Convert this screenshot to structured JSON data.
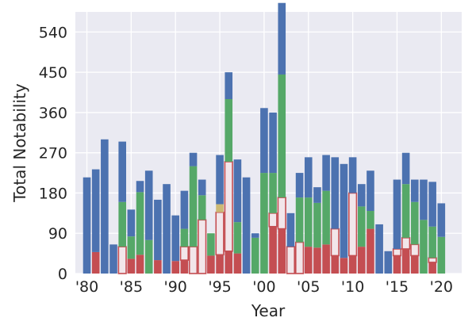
{
  "chart_data": {
    "type": "bar",
    "stacked": true,
    "title": "",
    "xlabel": "Year",
    "ylabel": "Total Notability",
    "ylim": [
      0,
      585
    ],
    "xlim": [
      1978.7,
      2022.3
    ],
    "grid": true,
    "legend": "none",
    "yticks": [
      0,
      90,
      180,
      270,
      360,
      450,
      540
    ],
    "ytick_labels": [
      "0",
      "90",
      "180",
      "270",
      "360",
      "450",
      "540"
    ],
    "xticks": [
      1980,
      1985,
      1990,
      1995,
      2000,
      2005,
      2010,
      2015,
      2020
    ],
    "xtick_labels": [
      "'80",
      "'85",
      "'90",
      "'95",
      "'00",
      "'05",
      "'10",
      "'15",
      "'20"
    ],
    "x": [
      1980,
      1981,
      1982,
      1983,
      1984,
      1985,
      1986,
      1987,
      1988,
      1989,
      1990,
      1991,
      1992,
      1993,
      1994,
      1995,
      1996,
      1997,
      1998,
      1999,
      2000,
      2001,
      2002,
      2003,
      2004,
      2005,
      2006,
      2007,
      2008,
      2009,
      2010,
      2011,
      2012,
      2013,
      2014,
      2015,
      2016,
      2017,
      2018,
      2019,
      2020
    ],
    "series": [
      {
        "color": "#c44e52",
        "values": [
          0,
          48,
          0,
          0,
          0,
          33,
          42,
          0,
          30,
          0,
          28,
          30,
          0,
          0,
          40,
          42,
          50,
          45,
          0,
          0,
          0,
          105,
          100,
          0,
          0,
          60,
          58,
          65,
          40,
          35,
          40,
          60,
          100,
          0,
          0,
          40,
          55,
          40,
          0,
          25,
          0
        ]
      },
      {
        "color": "#f2e6ea",
        "values": [
          0,
          0,
          0,
          0,
          60,
          0,
          0,
          0,
          0,
          0,
          0,
          30,
          60,
          120,
          0,
          95,
          200,
          0,
          0,
          0,
          0,
          30,
          70,
          60,
          70,
          0,
          0,
          0,
          60,
          0,
          140,
          0,
          0,
          0,
          0,
          15,
          25,
          25,
          0,
          10,
          0
        ]
      },
      {
        "color": "#ccb974",
        "values": [
          0,
          0,
          0,
          0,
          0,
          0,
          0,
          0,
          0,
          0,
          0,
          0,
          0,
          0,
          0,
          18,
          0,
          0,
          0,
          0,
          0,
          0,
          0,
          0,
          0,
          0,
          0,
          0,
          0,
          0,
          0,
          0,
          0,
          0,
          0,
          0,
          0,
          0,
          0,
          0,
          0
        ]
      },
      {
        "color": "#55a868",
        "values": [
          0,
          0,
          0,
          0,
          100,
          50,
          140,
          75,
          0,
          0,
          0,
          40,
          180,
          55,
          50,
          0,
          140,
          70,
          0,
          80,
          225,
          90,
          275,
          0,
          100,
          110,
          100,
          120,
          0,
          0,
          0,
          90,
          40,
          0,
          0,
          0,
          120,
          95,
          120,
          70,
          82
        ]
      },
      {
        "color": "#4c72b0",
        "values": [
          215,
          185,
          300,
          65,
          135,
          60,
          25,
          155,
          135,
          200,
          102,
          85,
          30,
          35,
          0,
          110,
          60,
          140,
          215,
          10,
          145,
          135,
          160,
          75,
          55,
          90,
          35,
          80,
          160,
          210,
          80,
          50,
          90,
          110,
          50,
          155,
          70,
          50,
          90,
          100,
          75
        ]
      }
    ]
  }
}
